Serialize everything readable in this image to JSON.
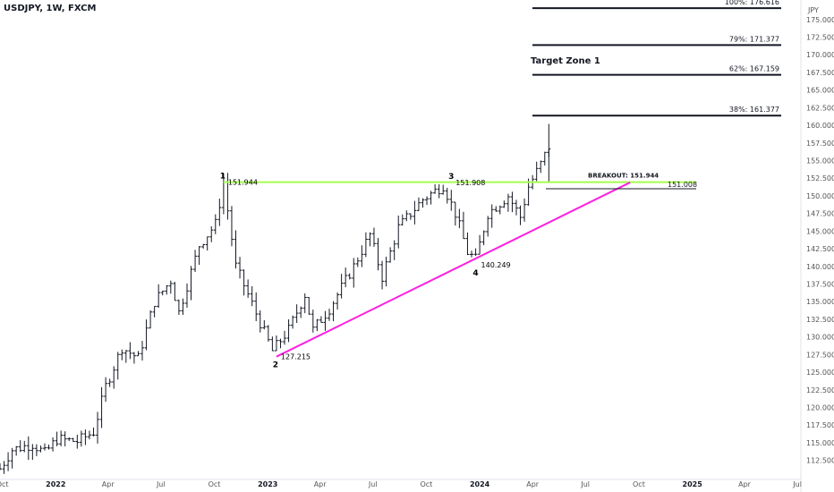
{
  "header": {
    "title": "USDJPY, 1W, FXCM"
  },
  "chart_data": {
    "type": "ohlc",
    "title": "USDJPY, 1W, FXCM",
    "unit": "JPY",
    "ylim": [
      110,
      180
    ],
    "y_ticks": [
      112.5,
      115,
      117.5,
      120,
      122.5,
      125,
      127.5,
      130,
      132.5,
      135,
      137.5,
      140,
      142.5,
      145,
      147.5,
      150,
      152.5,
      155,
      157.5,
      160,
      162.5,
      165,
      167.5,
      170,
      172.5,
      175
    ],
    "x_ticks": [
      {
        "label": "Oct",
        "date": "2021-10-01"
      },
      {
        "label": "2022",
        "date": "2022-01-01"
      },
      {
        "label": "Apr",
        "date": "2022-04-01"
      },
      {
        "label": "Jul",
        "date": "2022-07-01"
      },
      {
        "label": "Oct",
        "date": "2022-10-01"
      },
      {
        "label": "2023",
        "date": "2023-01-01"
      },
      {
        "label": "Apr",
        "date": "2023-04-01"
      },
      {
        "label": "Jul",
        "date": "2023-07-01"
      },
      {
        "label": "Oct",
        "date": "2023-10-01"
      },
      {
        "label": "2024",
        "date": "2024-01-01"
      },
      {
        "label": "Apr",
        "date": "2024-04-01"
      },
      {
        "label": "Jul",
        "date": "2024-07-01"
      },
      {
        "label": "Oct",
        "date": "2024-10-01"
      },
      {
        "label": "2025",
        "date": "2025-01-01"
      },
      {
        "label": "Apr",
        "date": "2025-04-01"
      },
      {
        "label": "Jul",
        "date": "2025-07-01"
      }
    ],
    "x_range": [
      "2021-09-27",
      "2025-07-07"
    ],
    "grid": false,
    "price_path": [
      [
        "2021-09-27",
        111.3
      ],
      [
        "2021-10-18",
        114.0
      ],
      [
        "2021-11-22",
        114.8
      ],
      [
        "2021-12-13",
        113.5
      ],
      [
        "2022-01-03",
        115.5
      ],
      [
        "2022-02-07",
        115.2
      ],
      [
        "2022-03-07",
        116.5
      ],
      [
        "2022-03-28",
        123.0
      ],
      [
        "2022-04-25",
        128.5
      ],
      [
        "2022-05-23",
        127.0
      ],
      [
        "2022-06-20",
        135.0
      ],
      [
        "2022-07-18",
        138.0
      ],
      [
        "2022-08-01",
        133.5
      ],
      [
        "2022-09-05",
        143.0
      ],
      [
        "2022-10-03",
        146.0
      ],
      [
        "2022-10-17",
        151.9
      ],
      [
        "2022-11-07",
        140.0
      ],
      [
        "2022-11-28",
        136.0
      ],
      [
        "2022-12-19",
        132.0
      ],
      [
        "2023-01-09",
        128.0
      ],
      [
        "2023-02-06",
        131.0
      ],
      [
        "2023-03-06",
        136.0
      ],
      [
        "2023-03-20",
        131.0
      ],
      [
        "2023-04-17",
        134.0
      ],
      [
        "2023-05-29",
        140.0
      ],
      [
        "2023-06-26",
        144.5
      ],
      [
        "2023-07-17",
        138.5
      ],
      [
        "2023-08-14",
        145.5
      ],
      [
        "2023-09-25",
        149.5
      ],
      [
        "2023-10-30",
        151.5
      ],
      [
        "2023-11-20",
        147.5
      ],
      [
        "2023-12-11",
        142.0
      ],
      [
        "2023-12-25",
        141.0
      ],
      [
        "2024-01-15",
        147.5
      ],
      [
        "2024-02-19",
        150.0
      ],
      [
        "2024-03-11",
        147.0
      ],
      [
        "2024-03-25",
        151.3
      ],
      [
        "2024-04-15",
        154.5
      ],
      [
        "2024-04-29",
        157.0
      ]
    ],
    "pivots": [
      {
        "label": "1",
        "price": "151.944",
        "date": "2022-10-17",
        "value": 151.944
      },
      {
        "label": "2",
        "price": "127.215",
        "date": "2023-01-16",
        "value": 127.215
      },
      {
        "label": "3",
        "price": "151.908",
        "date": "2023-11-13",
        "value": 151.908
      },
      {
        "label": "4",
        "price": "140.249",
        "date": "2023-12-25",
        "value": 140.249
      }
    ],
    "fib_levels": [
      {
        "label": "100%: 176.616",
        "value": 176.616
      },
      {
        "label": "79%: 171.377",
        "value": 171.377
      },
      {
        "label": "62%: 167.159",
        "value": 167.159
      },
      {
        "label": "38%: 161.377",
        "value": 161.377
      }
    ],
    "target_zone_label": "Target Zone 1",
    "breakout": {
      "label": "BREAKOUT: 151.944",
      "value": 151.944
    },
    "level_151": {
      "label": "151.008",
      "value": 151.008
    },
    "trendline": {
      "from_date": "2023-01-16",
      "from_value": 127.2,
      "to_date": "2024-09-16",
      "to_value": 151.9
    },
    "colors": {
      "bar": "#131722",
      "resistance": "#a6ff4d",
      "trendline": "#ff1ee0",
      "text": "#131722",
      "axis_text": "#555555"
    }
  }
}
